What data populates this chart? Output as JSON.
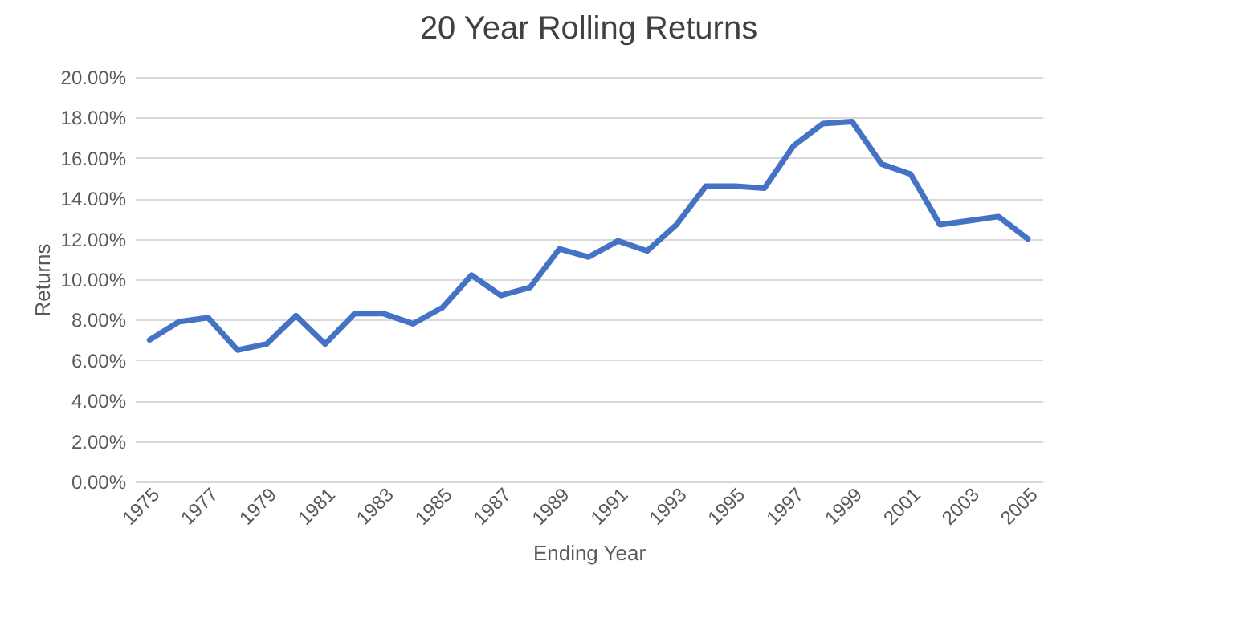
{
  "chart_data": {
    "type": "line",
    "title": "20 Year Rolling Returns",
    "xlabel": "Ending Year",
    "ylabel": "Returns",
    "categories": [
      "1975",
      null,
      "1977",
      null,
      "1979",
      null,
      "1981",
      null,
      "1983",
      null,
      "1985",
      null,
      "1987",
      null,
      "1989",
      null,
      "1991",
      null,
      "1993",
      null,
      "1995",
      null,
      "1997",
      null,
      "1999",
      null,
      "2001",
      null,
      "2003",
      null,
      "2005"
    ],
    "series": [
      {
        "color": "#4472c4",
        "values": [
          7.0,
          7.9,
          8.1,
          6.5,
          6.8,
          8.2,
          6.8,
          8.3,
          8.3,
          7.8,
          8.6,
          10.2,
          9.2,
          9.6,
          11.5,
          11.1,
          11.9,
          11.4,
          12.7,
          14.6,
          14.6,
          14.5,
          16.6,
          17.7,
          17.8,
          15.7,
          15.2,
          12.7,
          12.9,
          13.1,
          12.0
        ]
      }
    ],
    "ylim": [
      0,
      20
    ],
    "yticks": [
      {
        "value": 0,
        "label": "0.00%"
      },
      {
        "value": 2,
        "label": "2.00%"
      },
      {
        "value": 4,
        "label": "4.00%"
      },
      {
        "value": 6,
        "label": "6.00%"
      },
      {
        "value": 8,
        "label": "8.00%"
      },
      {
        "value": 10,
        "label": "10.00%"
      },
      {
        "value": 12,
        "label": "12.00%"
      },
      {
        "value": 14,
        "label": "14.00%"
      },
      {
        "value": 16,
        "label": "16.00%"
      },
      {
        "value": 18,
        "label": "18.00%"
      },
      {
        "value": 20,
        "label": "20.00%"
      }
    ],
    "grid": "y",
    "legend": false,
    "line_style": "solid",
    "marker": "none"
  }
}
